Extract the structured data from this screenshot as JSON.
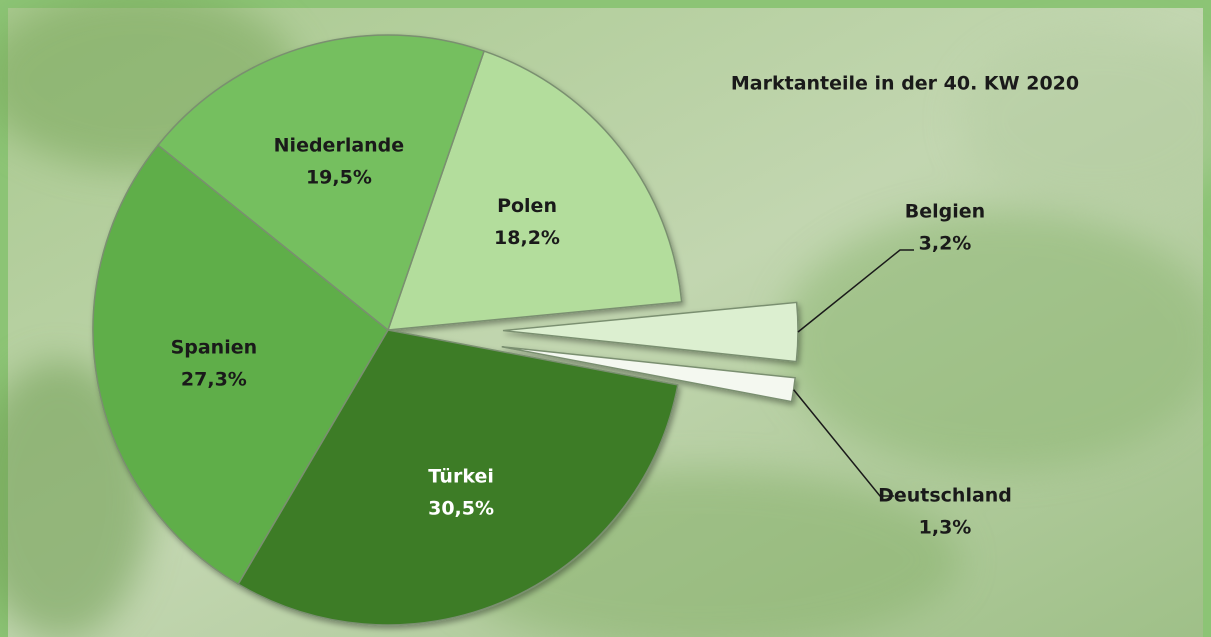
{
  "chart_data": {
    "type": "pie",
    "title": "Marktanteile in der 40. KW 2020",
    "categories": [
      "Polen",
      "Belgien",
      "Deutschland",
      "Türkei",
      "Spanien",
      "Niederlande"
    ],
    "values": [
      18.2,
      3.2,
      1.3,
      30.5,
      27.3,
      19.5
    ],
    "value_labels": [
      "18,2%",
      "3,2%",
      "1,3%",
      "30,5%",
      "27,3%",
      "19,5%"
    ],
    "colors": [
      "#b3dd9c",
      "#dcefd0",
      "#f4f8f0",
      "#3d7b28",
      "#5fae48",
      "#74bf5e"
    ],
    "exploded": [
      false,
      true,
      true,
      false,
      false,
      false
    ]
  }
}
